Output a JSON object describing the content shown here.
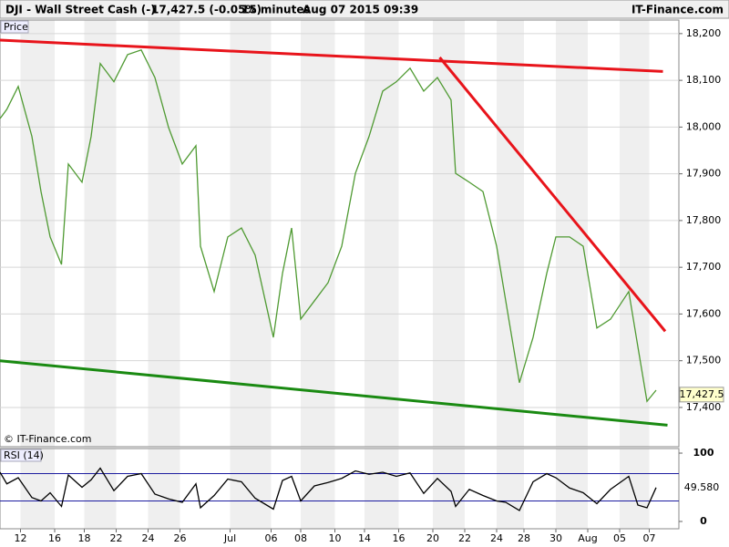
{
  "header": {
    "symbol": "DJI - Wall Street Cash (-)",
    "quote": "17,427.5 (-0.05%)",
    "interval": "15 minutes",
    "datetime": "Aug 07 2015 09:39",
    "brand": "IT-Finance.com"
  },
  "chart_data": [
    {
      "type": "line",
      "title": "Price",
      "credit": "© IT-Finance.com",
      "color": "#4f9a32",
      "x": [
        0,
        3,
        8,
        14,
        18,
        22,
        27,
        30,
        36,
        40,
        44,
        50,
        56,
        62,
        68,
        74,
        80,
        86,
        88,
        94,
        100,
        106,
        112,
        120,
        124,
        128,
        132,
        138,
        144,
        150,
        156,
        162,
        168,
        174,
        180,
        186,
        192,
        198,
        200,
        206,
        212,
        218,
        222,
        228,
        234,
        240,
        244,
        250,
        256,
        262,
        268,
        276,
        280,
        284,
        288
      ],
      "values": [
        18018,
        18038,
        18087,
        17980,
        17862,
        17765,
        17706,
        17921,
        17882,
        17980,
        18136,
        18097,
        18155,
        18165,
        18106,
        17999,
        17921,
        17960,
        17745,
        17648,
        17765,
        17784,
        17726,
        17550,
        17687,
        17784,
        17589,
        17628,
        17667,
        17745,
        17901,
        17980,
        18077,
        18097,
        18126,
        18077,
        18106,
        18058,
        17901,
        17882,
        17862,
        17745,
        17628,
        17453,
        17550,
        17687,
        17765,
        17765,
        17745,
        17570,
        17589,
        17648,
        17530,
        17413,
        17437
      ],
      "xlim": [
        0,
        298
      ],
      "ylim": [
        17316,
        18229
      ],
      "yticks": [
        {
          "value": 17400,
          "label": "17,400"
        },
        {
          "value": 17500,
          "label": "17,500"
        },
        {
          "value": 17600,
          "label": "17,600"
        },
        {
          "value": 17700,
          "label": "17,700"
        },
        {
          "value": 17800,
          "label": "17,800"
        },
        {
          "value": 17900,
          "label": "17,900"
        },
        {
          "value": 18000,
          "label": "18,000"
        },
        {
          "value": 18100,
          "label": "18,100"
        },
        {
          "value": 18200,
          "label": "18,200"
        }
      ],
      "grid": true,
      "last": {
        "value": 17427.5,
        "label": "17,427.5"
      },
      "trendlines": [
        {
          "color": "#e8141b",
          "x": [
            0,
            291
          ],
          "values": [
            18186,
            18119
          ]
        },
        {
          "color": "#e8141b",
          "x": [
            193,
            292
          ],
          "values": [
            18149,
            17563
          ]
        },
        {
          "color": "#1a8a12",
          "x": [
            0,
            293
          ],
          "values": [
            17500,
            17362
          ]
        }
      ]
    },
    {
      "type": "line",
      "title": "RSI (14)",
      "color": "#000000",
      "x": [
        0,
        3,
        8,
        14,
        18,
        22,
        27,
        30,
        36,
        40,
        44,
        50,
        56,
        62,
        68,
        74,
        80,
        86,
        88,
        94,
        100,
        106,
        112,
        120,
        124,
        128,
        132,
        138,
        144,
        150,
        156,
        162,
        168,
        174,
        180,
        186,
        192,
        198,
        200,
        206,
        212,
        218,
        222,
        228,
        234,
        240,
        244,
        250,
        256,
        262,
        268,
        276,
        280,
        284,
        288
      ],
      "values": [
        72,
        55,
        64,
        35,
        30,
        42,
        22,
        68,
        50,
        61,
        78,
        45,
        66,
        70,
        40,
        33,
        28,
        55,
        20,
        38,
        62,
        58,
        34,
        18,
        60,
        66,
        30,
        52,
        57,
        63,
        74,
        69,
        72,
        66,
        71,
        41,
        63,
        44,
        22,
        47,
        38,
        30,
        28,
        16,
        58,
        70,
        64,
        49,
        42,
        26,
        47,
        66,
        24,
        20,
        49.58
      ],
      "xlim": [
        0,
        298
      ],
      "ylim": [
        -10.7,
        106.7
      ],
      "yticks": [
        0,
        100
      ],
      "levels": [
        70,
        30
      ],
      "level_color": "#1c1ca0",
      "last": {
        "value": 49.58,
        "label": "49.580"
      },
      "xticks": [
        {
          "value": 9,
          "label": "12"
        },
        {
          "value": 24,
          "label": "16"
        },
        {
          "value": 37,
          "label": "18"
        },
        {
          "value": 51,
          "label": "22"
        },
        {
          "value": 65,
          "label": "24"
        },
        {
          "value": 79,
          "label": "26"
        },
        {
          "value": 101,
          "label": "Jul"
        },
        {
          "value": 119,
          "label": "06"
        },
        {
          "value": 132,
          "label": "08"
        },
        {
          "value": 147,
          "label": "10"
        },
        {
          "value": 160,
          "label": "14"
        },
        {
          "value": 175,
          "label": "16"
        },
        {
          "value": 190,
          "label": "20"
        },
        {
          "value": 204,
          "label": "22"
        },
        {
          "value": 218,
          "label": "24"
        },
        {
          "value": 230,
          "label": "28"
        },
        {
          "value": 244,
          "label": "30"
        },
        {
          "value": 258,
          "label": "Aug"
        },
        {
          "value": 272,
          "label": "05"
        },
        {
          "value": 285,
          "label": "07"
        }
      ]
    }
  ]
}
